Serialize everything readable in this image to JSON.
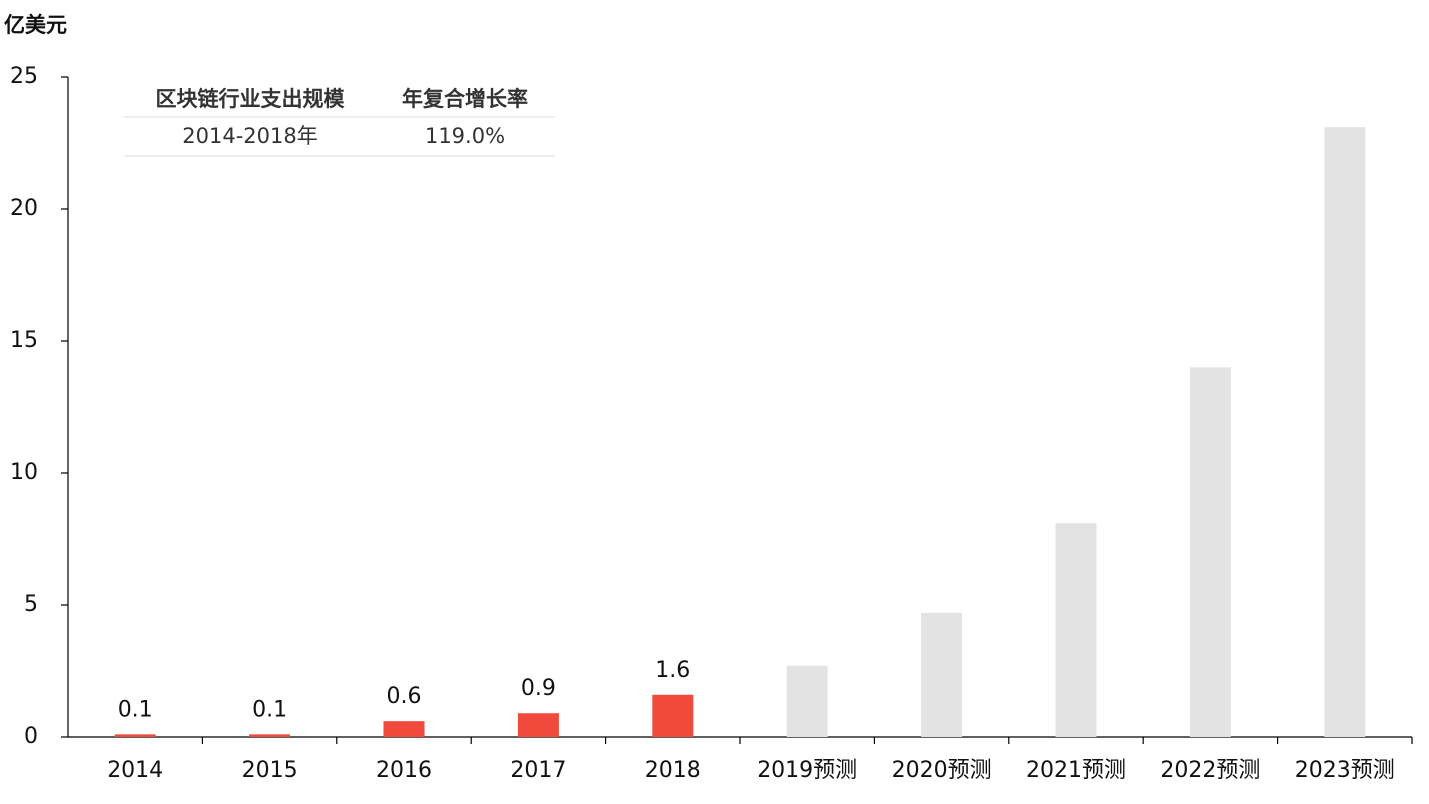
{
  "chart_data": {
    "type": "bar",
    "y_label": "亿美元",
    "categories": [
      "2014",
      "2015",
      "2016",
      "2017",
      "2018",
      "2019预测",
      "2020预测",
      "2021预测",
      "2022预测",
      "2023预测"
    ],
    "values": [
      0.1,
      0.1,
      0.6,
      0.9,
      1.6,
      2.7,
      4.7,
      8.1,
      14.0,
      23.1
    ],
    "value_labels": [
      "0.1",
      "0.1",
      "0.6",
      "0.9",
      "1.6",
      null,
      null,
      null,
      null,
      null
    ],
    "colors": [
      "#f04a3c",
      "#f04a3c",
      "#f04a3c",
      "#f04a3c",
      "#f04a3c",
      "#e3e3e3",
      "#e3e3e3",
      "#e3e3e3",
      "#e3e3e3",
      "#e3e3e3"
    ],
    "ylim": [
      0,
      25
    ],
    "yticks": [
      0,
      5,
      10,
      15,
      20,
      25
    ],
    "grid": false
  },
  "table": {
    "header": [
      "区块链行业支出规模",
      "年复合增长率"
    ],
    "rows": [
      [
        "2014-2018年",
        "119.0%"
      ]
    ]
  }
}
